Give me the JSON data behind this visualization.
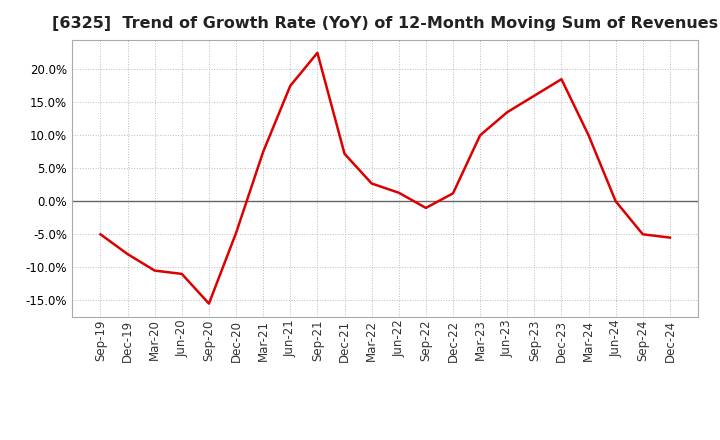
{
  "title": "[6325]  Trend of Growth Rate (YoY) of 12-Month Moving Sum of Revenues",
  "x_labels": [
    "Sep-19",
    "Dec-19",
    "Mar-20",
    "Jun-20",
    "Sep-20",
    "Dec-20",
    "Mar-21",
    "Jun-21",
    "Sep-21",
    "Dec-21",
    "Mar-22",
    "Jun-22",
    "Sep-22",
    "Dec-22",
    "Mar-23",
    "Jun-23",
    "Sep-23",
    "Dec-23",
    "Mar-24",
    "Jun-24",
    "Sep-24",
    "Dec-24"
  ],
  "y_values": [
    -0.05,
    -0.08,
    -0.105,
    -0.11,
    -0.155,
    -0.048,
    0.075,
    0.175,
    0.225,
    0.072,
    0.027,
    0.013,
    -0.01,
    0.012,
    0.1,
    0.135,
    0.16,
    0.185,
    0.1,
    0.0,
    -0.05,
    -0.055
  ],
  "line_color": "#dd0000",
  "line_width": 1.8,
  "ylim": [
    -0.175,
    0.245
  ],
  "yticks": [
    -0.15,
    -0.1,
    -0.05,
    0.0,
    0.05,
    0.1,
    0.15,
    0.2
  ],
  "background_color": "#ffffff",
  "plot_bg_color": "#ffffff",
  "grid_color": "#bbbbbb",
  "title_fontsize": 11.5,
  "title_color": "#222222",
  "zero_line_color": "#666666",
  "tick_fontsize": 8.5,
  "ytick_fontsize": 8.5
}
